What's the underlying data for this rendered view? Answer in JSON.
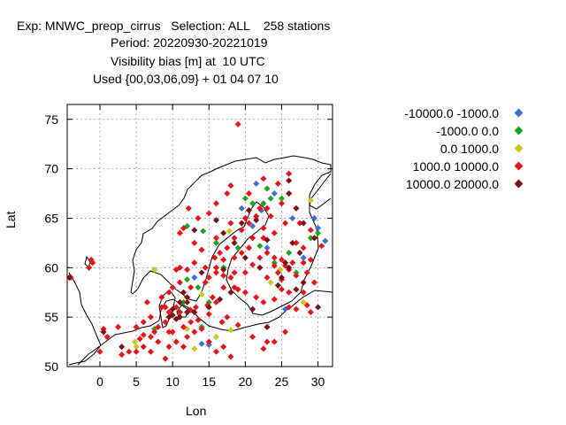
{
  "header": {
    "line1": "Exp: MNWC_preop_cirrus   Selection: ALL    258 stations",
    "line2": "Period: 20220930-20221019",
    "line3": "Visibility bias [m] at  10 UTC",
    "line4": "Used {00,03,06,09} + 01 04 07 10"
  },
  "chart_data": {
    "type": "scatter",
    "xlabel": "Lon",
    "ylabel": "Lat",
    "xlim": [
      -4.5,
      32
    ],
    "ylim": [
      50,
      76.5
    ],
    "x_ticks": [
      0,
      5,
      10,
      15,
      20,
      25,
      30
    ],
    "y_ticks": [
      50,
      55,
      60,
      65,
      70,
      75
    ],
    "grid": true,
    "legend_position": "right",
    "series": [
      {
        "name": "-10000.0 -1000.0",
        "color": "#3a6fdc",
        "points": [
          [
            21.5,
            68.5
          ],
          [
            24,
            67.5
          ],
          [
            26.5,
            65
          ],
          [
            29.5,
            65
          ],
          [
            30,
            64
          ],
          [
            31,
            62.7
          ],
          [
            28,
            61
          ],
          [
            25.5,
            55.8
          ],
          [
            22.2,
            65.8
          ],
          [
            19.5,
            66
          ],
          [
            21,
            64.2
          ],
          [
            13,
            59
          ],
          [
            14,
            52.3
          ],
          [
            15,
            52.2
          ],
          [
            23,
            62
          ]
        ]
      },
      {
        "name": "-1000.0 0.0",
        "color": "#1ea81e",
        "points": [
          [
            20,
            67
          ],
          [
            21,
            66.5
          ],
          [
            23,
            68
          ],
          [
            23.5,
            67
          ],
          [
            22.5,
            66.5
          ],
          [
            25,
            67
          ],
          [
            14.2,
            63.7
          ],
          [
            12,
            64.2
          ],
          [
            16,
            62.5
          ],
          [
            19,
            62
          ],
          [
            22,
            62.2
          ],
          [
            24,
            60.5
          ],
          [
            26,
            61.5
          ],
          [
            27,
            59.5
          ],
          [
            29,
            63
          ],
          [
            30,
            63.5
          ],
          [
            15,
            56.5
          ],
          [
            14,
            54
          ],
          [
            7.5,
            53.8
          ],
          [
            17,
            60
          ],
          [
            12,
            58.8
          ],
          [
            11.5,
            56.5
          ],
          [
            13.5,
            58
          ]
        ]
      },
      {
        "name": "0.0 1000.0",
        "color": "#c8c81e",
        "points": [
          [
            17.8,
            63.7
          ],
          [
            7.5,
            59.8
          ],
          [
            14,
            57.3
          ],
          [
            12,
            53.8
          ],
          [
            13,
            51.8
          ],
          [
            16,
            53
          ],
          [
            18,
            53.7
          ],
          [
            28,
            56.5
          ],
          [
            29,
            66.8
          ],
          [
            5,
            52
          ],
          [
            4.8,
            52.5
          ],
          [
            23.5,
            58.5
          ],
          [
            24.8,
            59.8
          ]
        ]
      },
      {
        "name": "1000.0 10000.0",
        "color": "#e8141a",
        "points": [
          [
            19,
            74.5
          ],
          [
            -1.5,
            60
          ],
          [
            -1.2,
            60.8
          ],
          [
            0,
            51.5
          ],
          [
            3,
            51.2
          ],
          [
            4,
            51.5
          ],
          [
            5,
            51.5
          ],
          [
            5.5,
            52.8
          ],
          [
            6,
            53.2
          ],
          [
            7,
            53
          ],
          [
            7.5,
            53.5
          ],
          [
            8,
            54
          ],
          [
            9,
            54.5
          ],
          [
            9.5,
            53.5
          ],
          [
            10,
            53.5
          ],
          [
            10.5,
            52.5
          ],
          [
            11.5,
            52
          ],
          [
            12,
            53
          ],
          [
            13,
            53.5
          ],
          [
            14,
            53.8
          ],
          [
            15,
            52.5
          ],
          [
            16,
            51.5
          ],
          [
            17,
            52
          ],
          [
            18,
            51
          ],
          [
            19,
            54.2
          ],
          [
            21,
            53
          ],
          [
            22.5,
            51.8
          ],
          [
            23,
            52.5
          ],
          [
            24,
            52.5
          ],
          [
            25.5,
            53.5
          ],
          [
            26,
            56
          ],
          [
            27,
            55.8
          ],
          [
            28.5,
            56.2
          ],
          [
            29,
            55.5
          ],
          [
            28,
            57.5
          ],
          [
            26,
            57.5
          ],
          [
            25,
            57.8
          ],
          [
            24,
            56.8
          ],
          [
            22.5,
            56.5
          ],
          [
            21.5,
            57
          ],
          [
            20,
            57.5
          ],
          [
            19,
            57.8
          ],
          [
            18.5,
            58
          ],
          [
            17,
            58
          ],
          [
            16,
            56.5
          ],
          [
            15.5,
            57
          ],
          [
            14.8,
            56.2
          ],
          [
            13.2,
            56
          ],
          [
            12.5,
            55.7
          ],
          [
            11,
            55.5
          ],
          [
            10.5,
            56
          ],
          [
            9.5,
            55.5
          ],
          [
            8.5,
            56
          ],
          [
            8.5,
            57
          ],
          [
            9.5,
            57.5
          ],
          [
            10,
            58
          ],
          [
            11,
            58.5
          ],
          [
            10.5,
            59.8
          ],
          [
            11,
            60
          ],
          [
            12,
            59.8
          ],
          [
            13,
            60.5
          ],
          [
            14.5,
            60
          ],
          [
            15.8,
            61
          ],
          [
            16.5,
            61.5
          ],
          [
            17.5,
            62
          ],
          [
            18.5,
            63
          ],
          [
            19.5,
            63.8
          ],
          [
            20.5,
            64.5
          ],
          [
            21.5,
            65.2
          ],
          [
            22,
            66
          ],
          [
            20.5,
            67.5
          ],
          [
            18,
            68.3
          ],
          [
            17.5,
            67.5
          ],
          [
            16,
            66.5
          ],
          [
            15,
            65.5
          ],
          [
            13.5,
            65
          ],
          [
            12.2,
            66
          ],
          [
            11.5,
            64
          ],
          [
            11,
            63.5
          ],
          [
            13,
            62.5
          ],
          [
            14,
            61.8
          ],
          [
            16,
            63
          ],
          [
            18,
            64.5
          ],
          [
            20,
            65
          ],
          [
            22.5,
            64
          ],
          [
            24,
            63.5
          ],
          [
            25.5,
            64.5
          ],
          [
            27.5,
            64.5
          ],
          [
            29,
            63.8
          ],
          [
            30.5,
            62.2
          ],
          [
            28,
            62
          ],
          [
            27,
            62.5
          ],
          [
            26.5,
            60.5
          ],
          [
            25.5,
            60.2
          ],
          [
            24,
            61
          ],
          [
            23,
            61.5
          ],
          [
            22,
            61
          ],
          [
            21,
            60.3
          ],
          [
            20,
            59.5
          ],
          [
            18.5,
            59.5
          ],
          [
            18,
            59
          ],
          [
            17,
            59.2
          ],
          [
            16,
            59.5
          ],
          [
            24,
            60.2
          ],
          [
            25,
            60.8
          ],
          [
            28,
            60.5
          ],
          [
            29,
            60.8
          ],
          [
            26,
            59.8
          ],
          [
            27,
            59.2
          ],
          [
            28.5,
            59.5
          ],
          [
            29.5,
            58.5
          ],
          [
            25,
            58.8
          ],
          [
            24.5,
            59.5
          ],
          [
            23,
            59
          ],
          [
            5,
            54
          ],
          [
            6,
            54.5
          ],
          [
            7,
            55
          ],
          [
            6.5,
            56.5
          ],
          [
            0.5,
            53.8
          ],
          [
            1,
            53
          ],
          [
            -1,
            60.5
          ],
          [
            -4,
            59
          ],
          [
            2.5,
            54
          ],
          [
            6,
            52
          ],
          [
            7,
            51.5
          ],
          [
            8,
            52.5
          ],
          [
            9,
            50.8
          ],
          [
            9.5,
            52
          ],
          [
            11.5,
            54
          ],
          [
            12.5,
            54.5
          ],
          [
            13.5,
            54.7
          ],
          [
            15,
            55.3
          ],
          [
            17.5,
            55
          ],
          [
            16.8,
            54.5
          ],
          [
            9,
            56
          ],
          [
            12,
            57
          ],
          [
            12.5,
            58
          ],
          [
            14.5,
            58.5
          ],
          [
            15,
            59
          ],
          [
            16,
            60
          ],
          [
            17,
            60.8
          ],
          [
            18.5,
            61
          ],
          [
            19.5,
            61.5
          ],
          [
            20.5,
            62
          ],
          [
            21,
            63
          ],
          [
            22.5,
            63
          ],
          [
            23.5,
            65.2
          ],
          [
            25,
            66.5
          ],
          [
            26,
            67.5
          ],
          [
            24.5,
            68.5
          ],
          [
            26,
            69.5
          ],
          [
            22.5,
            69
          ],
          [
            23,
            66
          ]
        ]
      },
      {
        "name": "10000.0 20000.0",
        "color": "#7a1414",
        "points": [
          [
            -4.2,
            59
          ],
          [
            0.5,
            53.5
          ],
          [
            3,
            52
          ],
          [
            26,
            68.8
          ],
          [
            26,
            67.5
          ],
          [
            27,
            66
          ],
          [
            28,
            64.5
          ],
          [
            29.5,
            63
          ],
          [
            27.5,
            61.5
          ],
          [
            26,
            60
          ],
          [
            25.5,
            60.5
          ],
          [
            22,
            60
          ],
          [
            20,
            61
          ],
          [
            17,
            59.8
          ],
          [
            14,
            59.5
          ],
          [
            12,
            57
          ],
          [
            11,
            56.5
          ],
          [
            10,
            55.8
          ],
          [
            9.5,
            55
          ],
          [
            10,
            55.2
          ],
          [
            10.5,
            54.8
          ],
          [
            11,
            55
          ],
          [
            12,
            55.5
          ],
          [
            12,
            56.5
          ],
          [
            11.5,
            57.5
          ],
          [
            13,
            55.5
          ],
          [
            15,
            56
          ],
          [
            16.5,
            56.8
          ],
          [
            18,
            57.5
          ],
          [
            23,
            54
          ],
          [
            21,
            55.8
          ],
          [
            27,
            57.8
          ],
          [
            30,
            56
          ],
          [
            24.5,
            58.2
          ],
          [
            20.5,
            65.8
          ],
          [
            21.5,
            64.8
          ],
          [
            19.5,
            64.5
          ],
          [
            17,
            63.5
          ],
          [
            18.5,
            62.5
          ],
          [
            13,
            63.8
          ],
          [
            16,
            64.8
          ],
          [
            25,
            59
          ],
          [
            28,
            58.5
          ],
          [
            26.5,
            62.5
          ],
          [
            23,
            62.8
          ]
        ]
      }
    ]
  },
  "legend": {
    "entries": [
      {
        "label": "-10000.0 -1000.0",
        "color": "#3a6fdc"
      },
      {
        "label": "-1000.0 0.0",
        "color": "#1ea81e"
      },
      {
        "label": "0.0 1000.0",
        "color": "#c8c81e"
      },
      {
        "label": "1000.0 10000.0",
        "color": "#e8141a"
      },
      {
        "label": "10000.0 20000.0",
        "color": "#7a1414"
      }
    ]
  }
}
